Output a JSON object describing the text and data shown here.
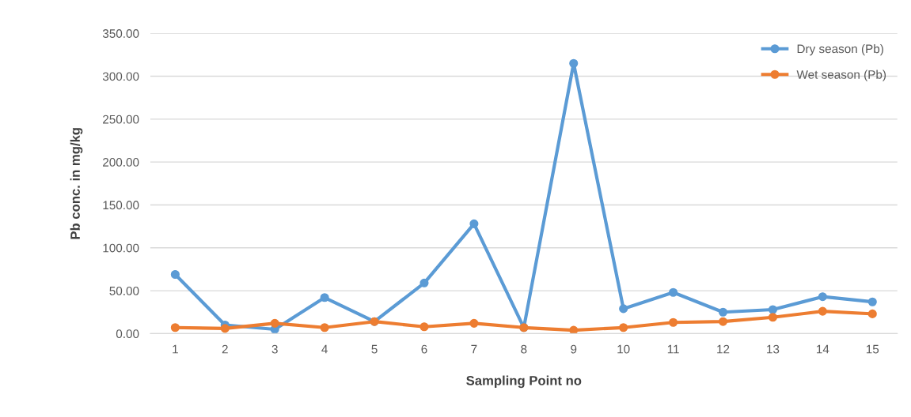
{
  "chart_data": {
    "type": "line",
    "xlabel": "Sampling Point no",
    "ylabel": "Pb conc. in mg/kg",
    "categories": [
      "1",
      "2",
      "3",
      "4",
      "5",
      "6",
      "7",
      "8",
      "9",
      "10",
      "11",
      "12",
      "13",
      "14",
      "15"
    ],
    "series": [
      {
        "name": "Dry season (Pb)",
        "color": "#5b9bd5",
        "values": [
          69,
          10,
          5,
          42,
          14,
          59,
          128,
          7,
          315,
          29,
          48,
          25,
          28,
          43,
          37
        ]
      },
      {
        "name": "Wet season (Pb)",
        "color": "#ed7d31",
        "values": [
          7,
          6,
          12,
          7,
          14,
          8,
          12,
          7,
          4,
          7,
          13,
          14,
          19,
          26,
          23
        ]
      }
    ],
    "ylim": [
      0,
      350
    ],
    "yticks": [
      {
        "value": 0,
        "label": "0.00"
      },
      {
        "value": 50,
        "label": "50.00"
      },
      {
        "value": 100,
        "label": "100.00"
      },
      {
        "value": 150,
        "label": "150.00"
      },
      {
        "value": 200,
        "label": "200.00"
      },
      {
        "value": 250,
        "label": "250.00"
      },
      {
        "value": 300,
        "label": "300.00"
      },
      {
        "value": 350,
        "label": "350.00"
      }
    ],
    "grid": "y",
    "legend": "top right",
    "marker": "circle",
    "line_style": "solid"
  }
}
